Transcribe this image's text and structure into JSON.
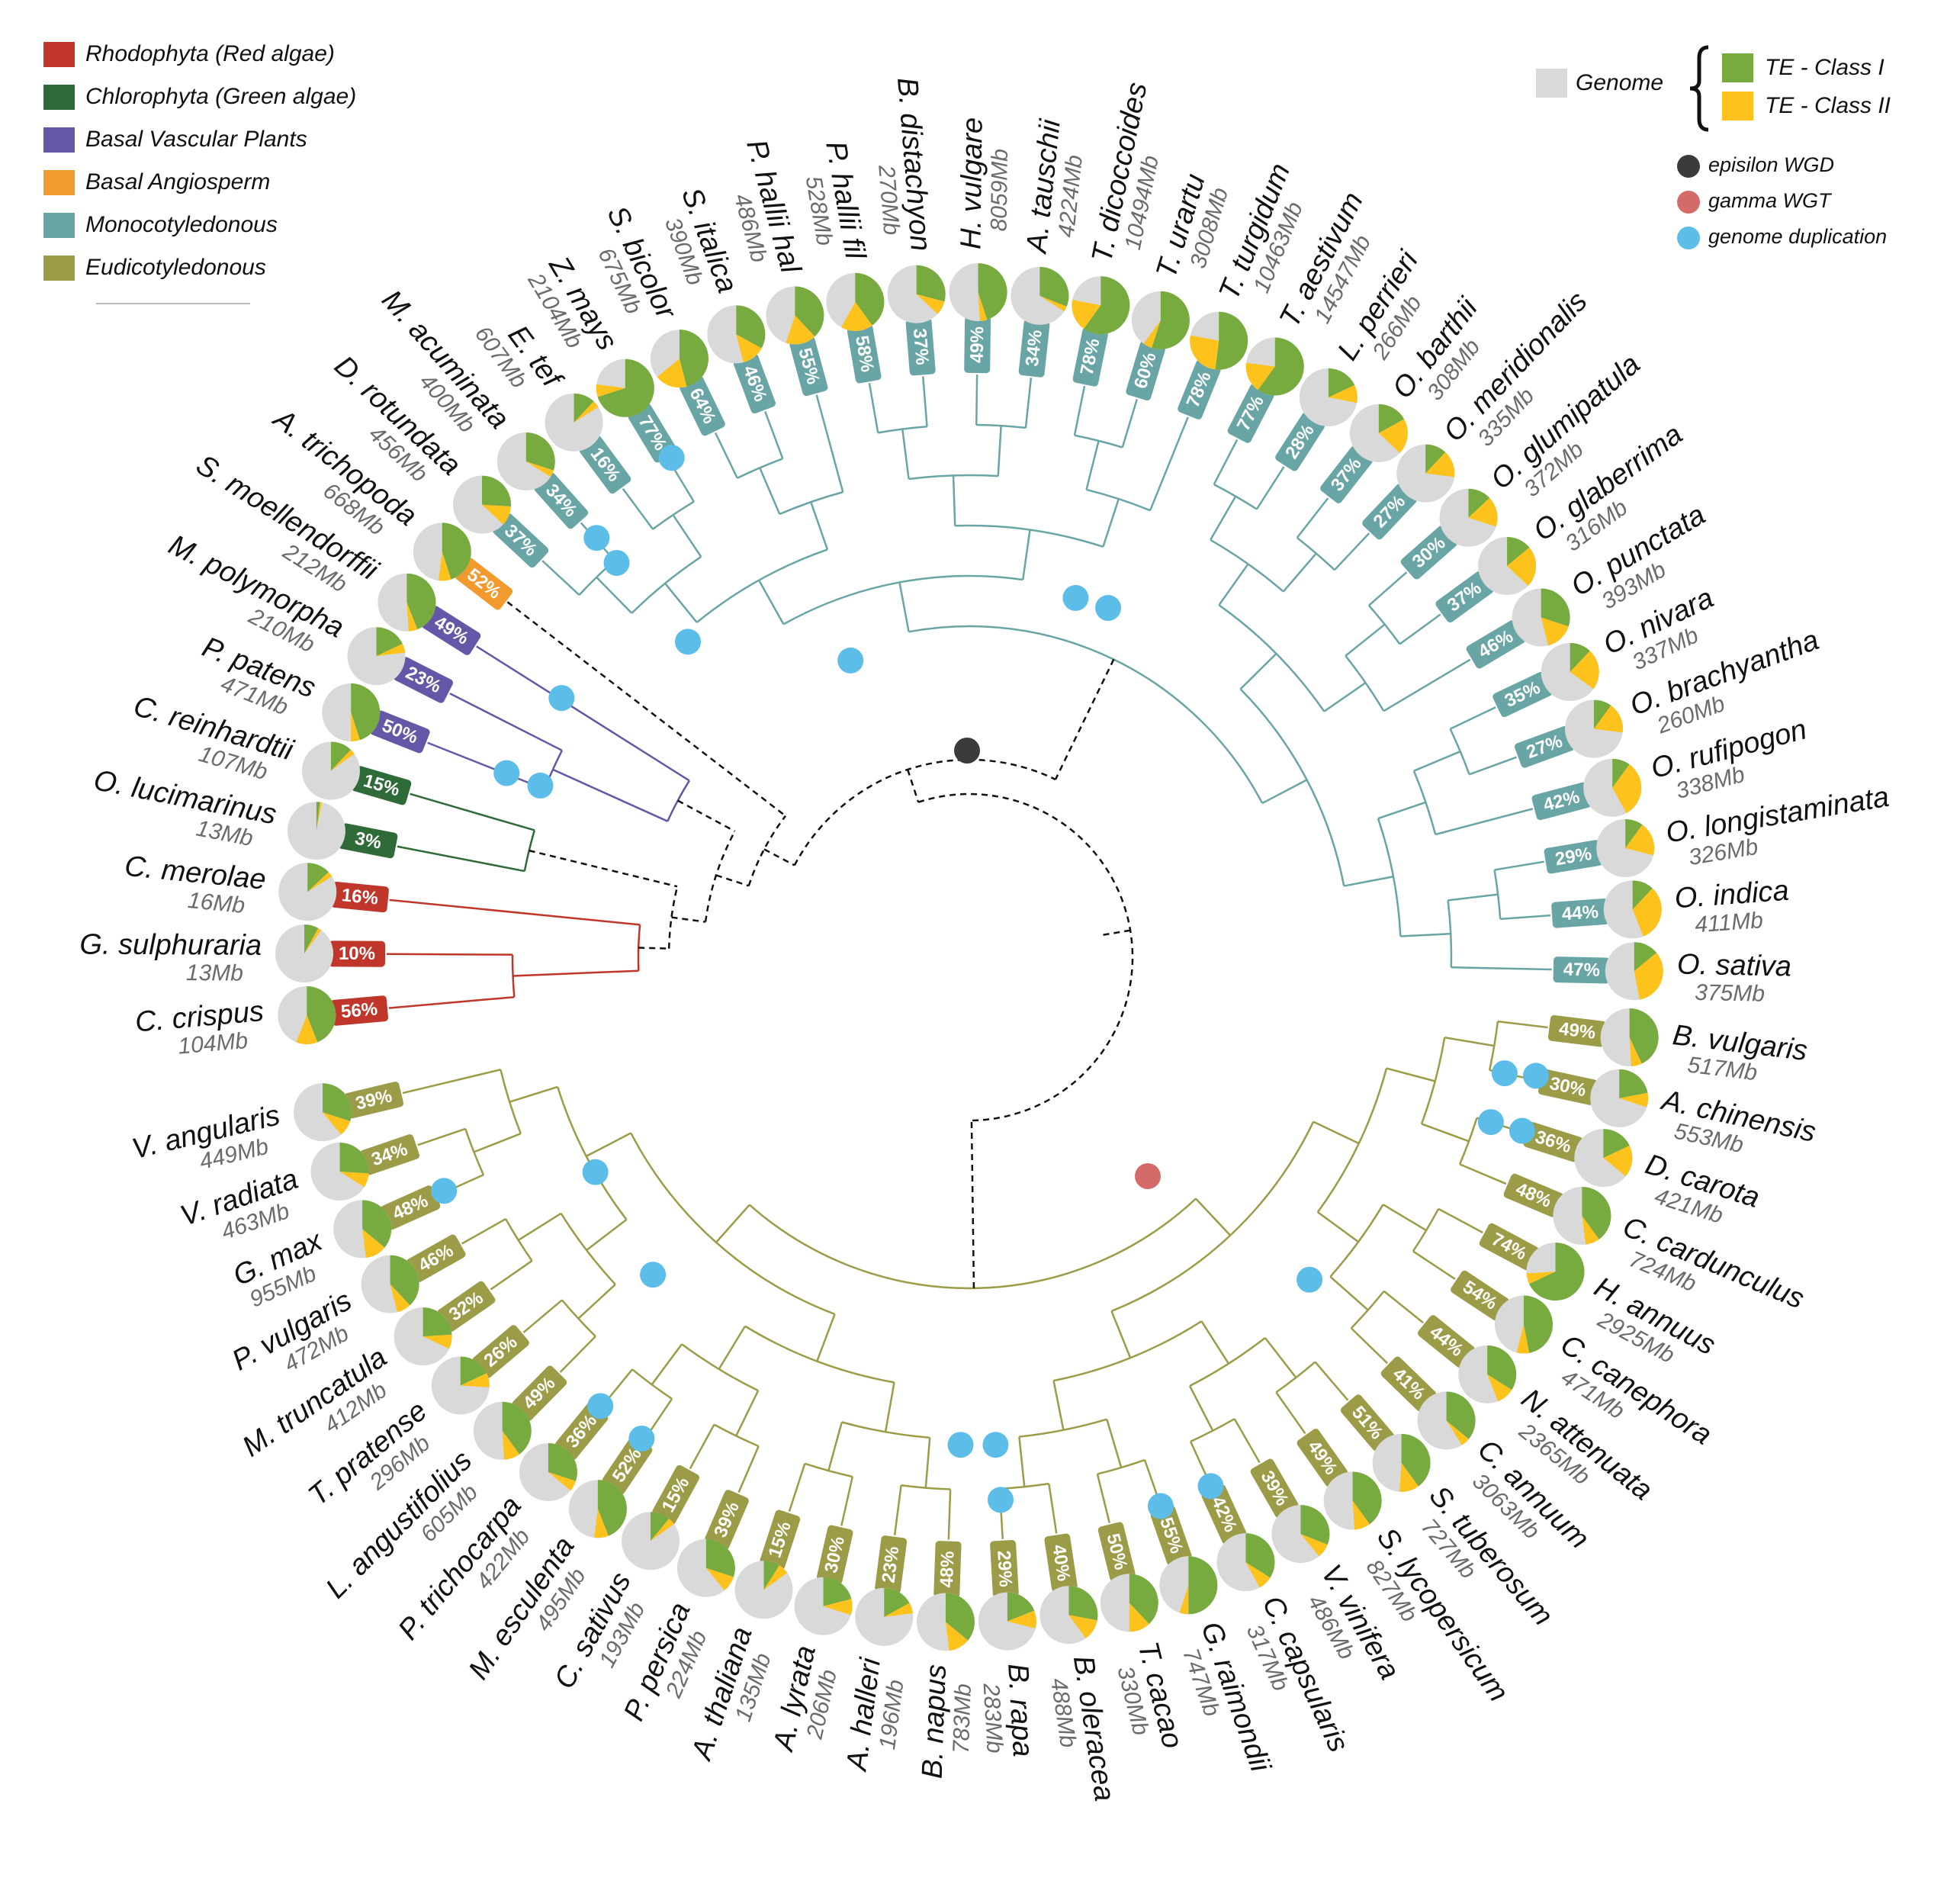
{
  "legend": {
    "genome": "Genome",
    "te_class1": "TE - Class I",
    "te_class2": "TE - Class II",
    "colors": {
      "genome": "#d9d9d9",
      "class1": "#77ab3f",
      "class2": "#fdc31c"
    },
    "events": [
      {
        "label": "episilon WGD",
        "color": "#3b3b3b"
      },
      {
        "label": "gamma WGT",
        "color": "#d46a6a"
      },
      {
        "label": "genome duplication",
        "color": "#5cbde8"
      }
    ]
  },
  "clades": [
    {
      "label": "Rhodophyta (Red algae)",
      "color": "#c1362b",
      "species": [
        {
          "name": "C. crispus",
          "size": "104Mb",
          "te": "56%",
          "class1": 44,
          "class2": 12
        },
        {
          "name": "G. sulphuraria",
          "size": "13Mb",
          "te": "10%",
          "class1": 8,
          "class2": 2
        },
        {
          "name": "C. merolae",
          "size": "16Mb",
          "te": "16%",
          "class1": 13,
          "class2": 3
        }
      ]
    },
    {
      "label": "Chlorophyta (Green algae)",
      "color": "#2e6b38",
      "species": [
        {
          "name": "O. lucimarinus",
          "size": "13Mb",
          "te": "3%",
          "class1": 2,
          "class2": 1
        },
        {
          "name": "C. reinhardtii",
          "size": "107Mb",
          "te": "15%",
          "class1": 12,
          "class2": 3
        }
      ]
    },
    {
      "label": "Basal Vascular Plants",
      "color": "#6457a8",
      "species": [
        {
          "name": "P. patens",
          "size": "471Mb",
          "te": "50%",
          "class1": 45,
          "class2": 5
        },
        {
          "name": "M. polymorpha",
          "size": "210Mb",
          "te": "23%",
          "class1": 18,
          "class2": 5
        },
        {
          "name": "S. moellendorffii",
          "size": "212Mb",
          "te": "49%",
          "class1": 44,
          "class2": 5
        }
      ]
    },
    {
      "label": "Basal Angiosperm",
      "color": "#f39a2f",
      "species": [
        {
          "name": "A. trichopoda",
          "size": "668Mb",
          "te": "52%",
          "class1": 45,
          "class2": 7
        }
      ]
    },
    {
      "label": "Monocotyledonous",
      "color": "#6aa5a6",
      "species": [
        {
          "name": "D. rotundata",
          "size": "456Mb",
          "te": "37%",
          "class1": 26,
          "class2": 11
        },
        {
          "name": "M. acuminata",
          "size": "400Mb",
          "te": "34%",
          "class1": 30,
          "class2": 4
        },
        {
          "name": "E. tef",
          "size": "607Mb",
          "te": "16%",
          "class1": 12,
          "class2": 4
        },
        {
          "name": "Z. mays",
          "size": "2104Mb",
          "te": "77%",
          "class1": 70,
          "class2": 7
        },
        {
          "name": "S. bicolor",
          "size": "675Mb",
          "te": "64%",
          "class1": 46,
          "class2": 18
        },
        {
          "name": "S. italica",
          "size": "390Mb",
          "te": "46%",
          "class1": 33,
          "class2": 13
        },
        {
          "name": "P. hallii hal",
          "size": "486Mb",
          "te": "55%",
          "class1": 38,
          "class2": 17
        },
        {
          "name": "P. hallii fil",
          "size": "528Mb",
          "te": "58%",
          "class1": 40,
          "class2": 18
        },
        {
          "name": "B. distachyon",
          "size": "270Mb",
          "te": "37%",
          "class1": 29,
          "class2": 8
        },
        {
          "name": "H. vulgare",
          "size": "8059Mb",
          "te": "49%",
          "class1": 45,
          "class2": 4
        },
        {
          "name": "A. tauschii",
          "size": "4224Mb",
          "te": "34%",
          "class1": 31,
          "class2": 3
        },
        {
          "name": "T. dicoccoides",
          "size": "10494Mb",
          "te": "78%",
          "class1": 60,
          "class2": 18
        },
        {
          "name": "T. urartu",
          "size": "3008Mb",
          "te": "60%",
          "class1": 55,
          "class2": 5
        },
        {
          "name": "T. turgidum",
          "size": "10463Mb",
          "te": "78%",
          "class1": 52,
          "class2": 26
        },
        {
          "name": "T. aestivum",
          "size": "14547Mb",
          "te": "77%",
          "class1": 60,
          "class2": 17
        },
        {
          "name": "L. perrieri",
          "size": "266Mb",
          "te": "28%",
          "class1": 18,
          "class2": 10
        },
        {
          "name": "O. barthii",
          "size": "308Mb",
          "te": "37%",
          "class1": 17,
          "class2": 20
        },
        {
          "name": "O. meridionalis",
          "size": "335Mb",
          "te": "27%",
          "class1": 12,
          "class2": 15
        },
        {
          "name": "O. glumipatula",
          "size": "372Mb",
          "te": "30%",
          "class1": 13,
          "class2": 17
        },
        {
          "name": "O. glaberrima",
          "size": "316Mb",
          "te": "37%",
          "class1": 14,
          "class2": 23
        },
        {
          "name": "O. punctata",
          "size": "393Mb",
          "te": "46%",
          "class1": 30,
          "class2": 16
        },
        {
          "name": "O. nivara",
          "size": "337Mb",
          "te": "35%",
          "class1": 12,
          "class2": 23
        },
        {
          "name": "O. brachyantha",
          "size": "260Mb",
          "te": "27%",
          "class1": 10,
          "class2": 17
        },
        {
          "name": "O. rufipogon",
          "size": "338Mb",
          "te": "42%",
          "class1": 10,
          "class2": 32
        },
        {
          "name": "O. longistaminata",
          "size": "326Mb",
          "te": "29%",
          "class1": 10,
          "class2": 19
        },
        {
          "name": "O. indica",
          "size": "411Mb",
          "te": "44%",
          "class1": 12,
          "class2": 32
        },
        {
          "name": "O. sativa",
          "size": "375Mb",
          "te": "47%",
          "class1": 14,
          "class2": 33
        }
      ]
    },
    {
      "label": "Eudicotyledonous",
      "color": "#9b9b48",
      "species": [
        {
          "name": "B. vulgaris",
          "size": "517Mb",
          "te": "49%",
          "class1": 43,
          "class2": 6
        },
        {
          "name": "A. chinensis",
          "size": "553Mb",
          "te": "30%",
          "class1": 22,
          "class2": 8
        },
        {
          "name": "D. carota",
          "size": "421Mb",
          "te": "36%",
          "class1": 18,
          "class2": 18
        },
        {
          "name": "C. cardunculus",
          "size": "724Mb",
          "te": "48%",
          "class1": 40,
          "class2": 8
        },
        {
          "name": "H. annuus",
          "size": "2925Mb",
          "te": "74%",
          "class1": 68,
          "class2": 6
        },
        {
          "name": "C. canephora",
          "size": "471Mb",
          "te": "54%",
          "class1": 47,
          "class2": 7
        },
        {
          "name": "N. attenuata",
          "size": "2365Mb",
          "te": "44%",
          "class1": 34,
          "class2": 10
        },
        {
          "name": "C. annuum",
          "size": "3063Mb",
          "te": "41%",
          "class1": 36,
          "class2": 5
        },
        {
          "name": "S. tuberosum",
          "size": "727Mb",
          "te": "51%",
          "class1": 40,
          "class2": 11
        },
        {
          "name": "S. lycopersicum",
          "size": "827Mb",
          "te": "49%",
          "class1": 40,
          "class2": 9
        },
        {
          "name": "V. vinifera",
          "size": "486Mb",
          "te": "39%",
          "class1": 31,
          "class2": 8
        },
        {
          "name": "C. capsularis",
          "size": "317Mb",
          "te": "42%",
          "class1": 34,
          "class2": 8
        },
        {
          "name": "G. raimondii",
          "size": "747Mb",
          "te": "55%",
          "class1": 50,
          "class2": 5
        },
        {
          "name": "T. cacao",
          "size": "330Mb",
          "te": "50%",
          "class1": 38,
          "class2": 12
        },
        {
          "name": "B. oleracea",
          "size": "488Mb",
          "te": "40%",
          "class1": 28,
          "class2": 12
        },
        {
          "name": "B. rapa",
          "size": "283Mb",
          "te": "29%",
          "class1": 19,
          "class2": 10
        },
        {
          "name": "B. napus",
          "size": "783Mb",
          "te": "48%",
          "class1": 36,
          "class2": 12
        },
        {
          "name": "A. halleri",
          "size": "196Mb",
          "te": "23%",
          "class1": 17,
          "class2": 6
        },
        {
          "name": "A. lyrata",
          "size": "206Mb",
          "te": "30%",
          "class1": 21,
          "class2": 9
        },
        {
          "name": "A. thaliana",
          "size": "135Mb",
          "te": "15%",
          "class1": 9,
          "class2": 6
        },
        {
          "name": "P. persica",
          "size": "224Mb",
          "te": "39%",
          "class1": 30,
          "class2": 9
        },
        {
          "name": "C. sativus",
          "size": "193Mb",
          "te": "15%",
          "class1": 11,
          "class2": 4
        },
        {
          "name": "M. esculenta",
          "size": "495Mb",
          "te": "52%",
          "class1": 44,
          "class2": 8
        },
        {
          "name": "P. trichocarpa",
          "size": "422Mb",
          "te": "36%",
          "class1": 30,
          "class2": 6
        },
        {
          "name": "L. angustifolius",
          "size": "605Mb",
          "te": "49%",
          "class1": 40,
          "class2": 9
        },
        {
          "name": "T. pratense",
          "size": "296Mb",
          "te": "26%",
          "class1": 18,
          "class2": 8
        },
        {
          "name": "M. truncatula",
          "size": "412Mb",
          "te": "32%",
          "class1": 24,
          "class2": 8
        },
        {
          "name": "P. vulgaris",
          "size": "472Mb",
          "te": "46%",
          "class1": 38,
          "class2": 8
        },
        {
          "name": "G. max",
          "size": "955Mb",
          "te": "48%",
          "class1": 36,
          "class2": 12
        },
        {
          "name": "V. radiata",
          "size": "463Mb",
          "te": "34%",
          "class1": 26,
          "class2": 8
        },
        {
          "name": "V. angularis",
          "size": "449Mb",
          "te": "39%",
          "class1": 30,
          "class2": 9
        }
      ]
    }
  ]
}
